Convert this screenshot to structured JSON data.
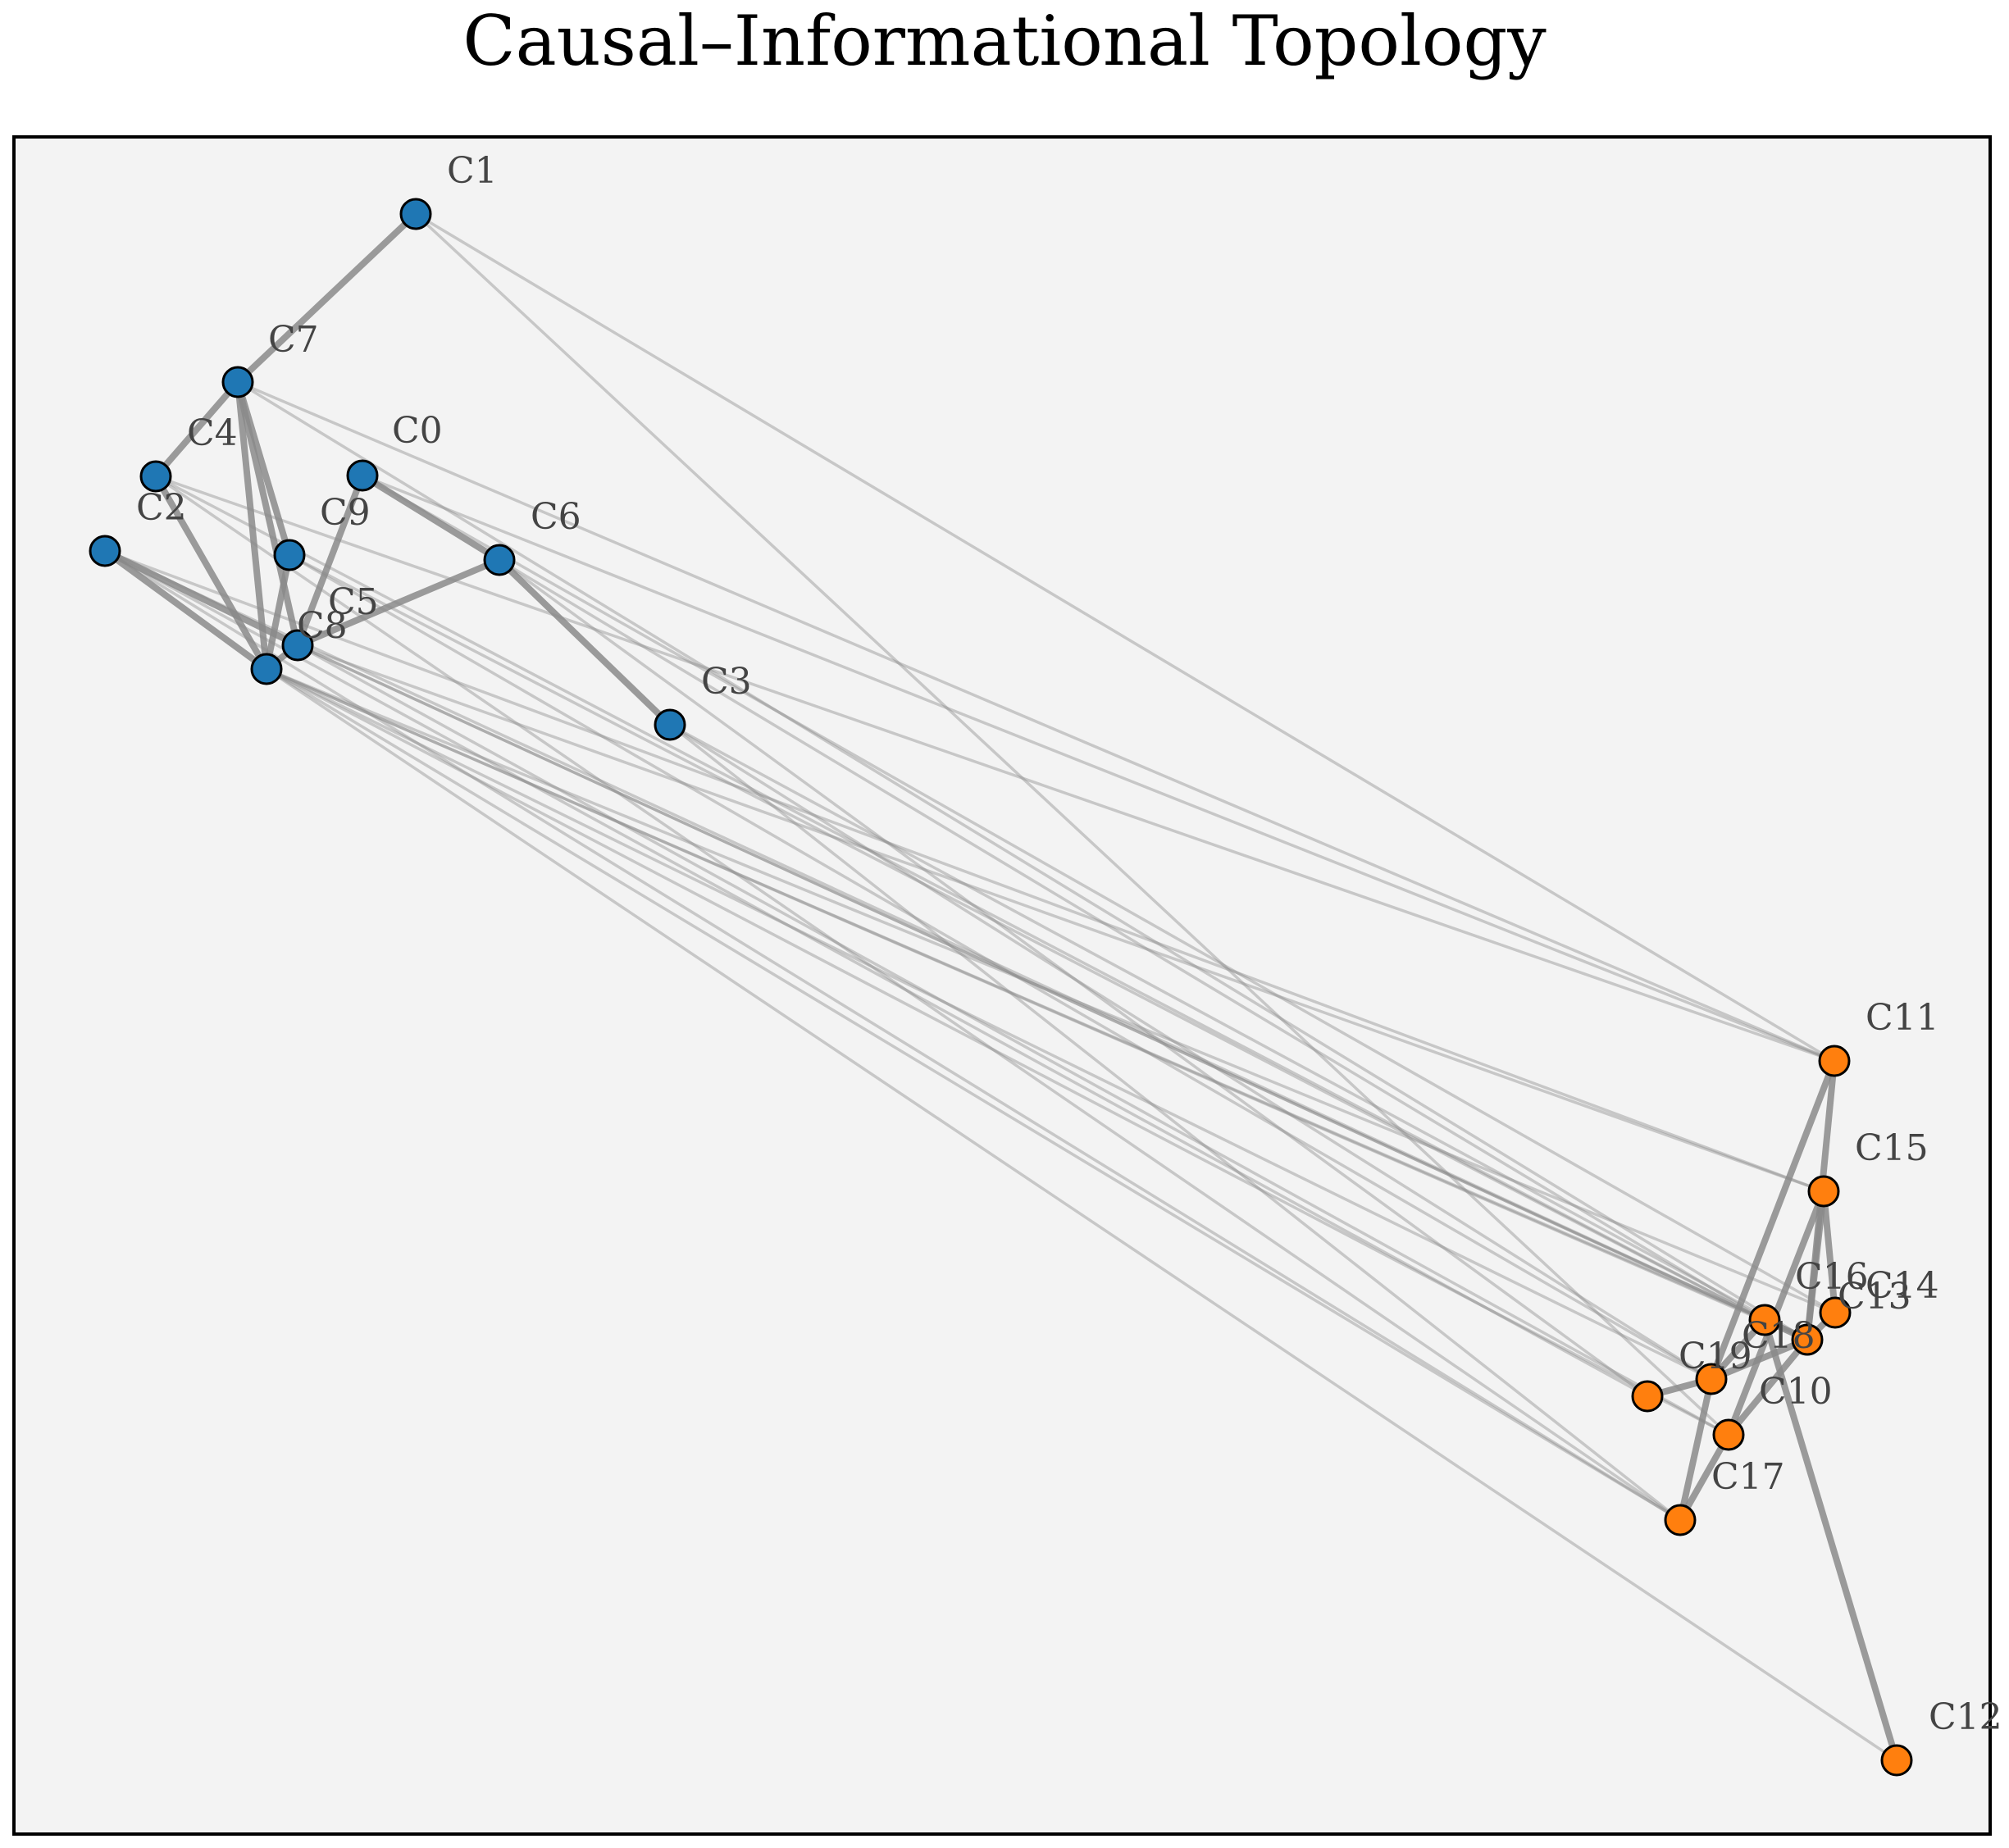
{
  "title": "Causal–Informational Topology",
  "colors": {
    "background": "#f3f3f3",
    "frame": "#000000",
    "edge": "#8a8a8a",
    "label": "#444444",
    "group_a": "#1f77b4",
    "group_b": "#ff7f0e",
    "node_outline": "#000000"
  },
  "nodes": [
    {
      "id": "C0",
      "label": "C0",
      "group": "a"
    },
    {
      "id": "C1",
      "label": "C1",
      "group": "a"
    },
    {
      "id": "C2",
      "label": "C2",
      "group": "a"
    },
    {
      "id": "C3",
      "label": "C3",
      "group": "a"
    },
    {
      "id": "C4",
      "label": "C4",
      "group": "a"
    },
    {
      "id": "C5",
      "label": "C5",
      "group": "a"
    },
    {
      "id": "C6",
      "label": "C6",
      "group": "a"
    },
    {
      "id": "C7",
      "label": "C7",
      "group": "a"
    },
    {
      "id": "C8",
      "label": "C8",
      "group": "a"
    },
    {
      "id": "C9",
      "label": "C9",
      "group": "a"
    },
    {
      "id": "C10",
      "label": "C10",
      "group": "b"
    },
    {
      "id": "C11",
      "label": "C11",
      "group": "b"
    },
    {
      "id": "C12",
      "label": "C12",
      "group": "b"
    },
    {
      "id": "C13",
      "label": "C13",
      "group": "b"
    },
    {
      "id": "C14",
      "label": "C14",
      "group": "b"
    },
    {
      "id": "C15",
      "label": "C15",
      "group": "b"
    },
    {
      "id": "C16",
      "label": "C16",
      "group": "b"
    },
    {
      "id": "C17",
      "label": "C17",
      "group": "b"
    },
    {
      "id": "C18",
      "label": "C18",
      "group": "b"
    },
    {
      "id": "C19",
      "label": "C19",
      "group": "b"
    }
  ],
  "edges": [
    {
      "source": "C1",
      "target": "C7",
      "weight": "strong"
    },
    {
      "source": "C7",
      "target": "C4",
      "weight": "strong"
    },
    {
      "source": "C7",
      "target": "C9",
      "weight": "strong"
    },
    {
      "source": "C7",
      "target": "C5",
      "weight": "strong"
    },
    {
      "source": "C7",
      "target": "C8",
      "weight": "strong"
    },
    {
      "source": "C4",
      "target": "C8",
      "weight": "strong"
    },
    {
      "source": "C2",
      "target": "C8",
      "weight": "strong"
    },
    {
      "source": "C2",
      "target": "C5",
      "weight": "strong"
    },
    {
      "source": "C9",
      "target": "C8",
      "weight": "strong"
    },
    {
      "source": "C0",
      "target": "C5",
      "weight": "strong"
    },
    {
      "source": "C0",
      "target": "C6",
      "weight": "strong"
    },
    {
      "source": "C6",
      "target": "C5",
      "weight": "strong"
    },
    {
      "source": "C6",
      "target": "C3",
      "weight": "strong"
    },
    {
      "source": "C8",
      "target": "C5",
      "weight": "strong"
    },
    {
      "source": "C11",
      "target": "C18",
      "weight": "strong"
    },
    {
      "source": "C11",
      "target": "C13",
      "weight": "strong"
    },
    {
      "source": "C15",
      "target": "C14",
      "weight": "strong"
    },
    {
      "source": "C15",
      "target": "C10",
      "weight": "strong"
    },
    {
      "source": "C15",
      "target": "C13",
      "weight": "strong"
    },
    {
      "source": "C16",
      "target": "C13",
      "weight": "strong"
    },
    {
      "source": "C16",
      "target": "C18",
      "weight": "strong"
    },
    {
      "source": "C16",
      "target": "C12",
      "weight": "strong"
    },
    {
      "source": "C18",
      "target": "C13",
      "weight": "strong"
    },
    {
      "source": "C18",
      "target": "C17",
      "weight": "strong"
    },
    {
      "source": "C18",
      "target": "C19",
      "weight": "strong"
    },
    {
      "source": "C10",
      "target": "C17",
      "weight": "strong"
    },
    {
      "source": "C10",
      "target": "C13",
      "weight": "strong"
    },
    {
      "source": "C14",
      "target": "C13",
      "weight": "strong"
    },
    {
      "source": "C1",
      "target": "C11",
      "weight": "weak"
    },
    {
      "source": "C1",
      "target": "C10",
      "weight": "weak"
    },
    {
      "source": "C7",
      "target": "C11",
      "weight": "weak"
    },
    {
      "source": "C7",
      "target": "C13",
      "weight": "weak"
    },
    {
      "source": "C4",
      "target": "C11",
      "weight": "weak"
    },
    {
      "source": "C4",
      "target": "C16",
      "weight": "weak"
    },
    {
      "source": "C4",
      "target": "C17",
      "weight": "weak"
    },
    {
      "source": "C0",
      "target": "C11",
      "weight": "weak"
    },
    {
      "source": "C0",
      "target": "C14",
      "weight": "weak"
    },
    {
      "source": "C2",
      "target": "C15",
      "weight": "weak"
    },
    {
      "source": "C2",
      "target": "C17",
      "weight": "weak"
    },
    {
      "source": "C2",
      "target": "C13",
      "weight": "weak"
    },
    {
      "source": "C2",
      "target": "C19",
      "weight": "weak"
    },
    {
      "source": "C9",
      "target": "C16",
      "weight": "weak"
    },
    {
      "source": "C9",
      "target": "C18",
      "weight": "weak"
    },
    {
      "source": "C6",
      "target": "C19",
      "weight": "weak"
    },
    {
      "source": "C6",
      "target": "C16",
      "weight": "weak"
    },
    {
      "source": "C3",
      "target": "C13",
      "weight": "weak"
    },
    {
      "source": "C3",
      "target": "C17",
      "weight": "weak"
    },
    {
      "source": "C3",
      "target": "C18",
      "weight": "weak"
    },
    {
      "source": "C5",
      "target": "C15",
      "weight": "weak"
    },
    {
      "source": "C5",
      "target": "C10",
      "weight": "weak"
    },
    {
      "source": "C5",
      "target": "C13",
      "weight": "weak"
    },
    {
      "source": "C5",
      "target": "C16",
      "weight": "weak"
    },
    {
      "source": "C8",
      "target": "C12",
      "weight": "weak"
    },
    {
      "source": "C8",
      "target": "C17",
      "weight": "weak"
    },
    {
      "source": "C8",
      "target": "C16",
      "weight": "weak"
    },
    {
      "source": "C8",
      "target": "C18",
      "weight": "weak"
    },
    {
      "source": "C8",
      "target": "C14",
      "weight": "weak"
    },
    {
      "source": "C8",
      "target": "C10",
      "weight": "weak"
    },
    {
      "source": "C8",
      "target": "C13",
      "weight": "weak"
    }
  ]
}
